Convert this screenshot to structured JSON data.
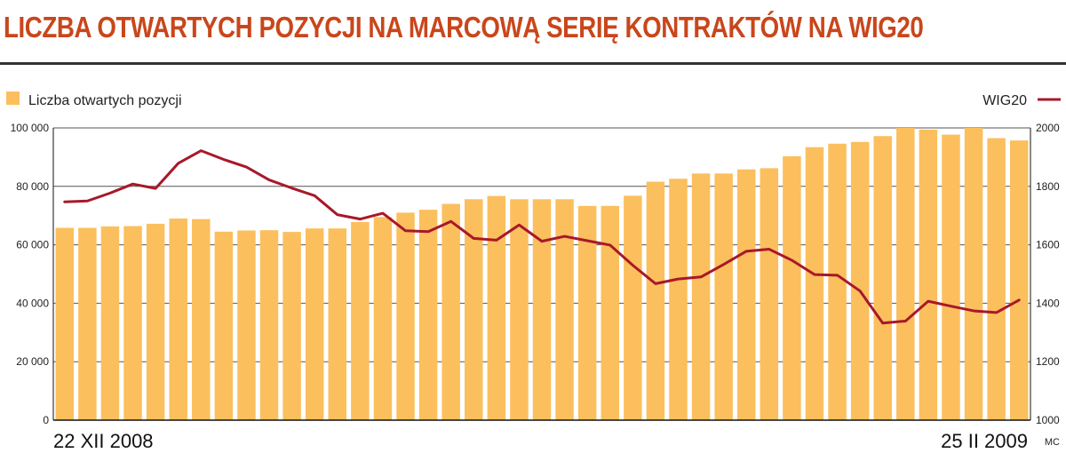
{
  "title": "LICZBA OTWARTYCH POZYCJI NA MARCOWĄ SERIĘ KONTRAKTÓW NA WIG20",
  "credit": "MC",
  "colors": {
    "bars": "#fbbf5d",
    "line": "#a8182a",
    "title": "#c9461b",
    "grid": "#555555"
  },
  "chart_data": {
    "type": "bar",
    "legend": {
      "bars": "Liczba otwartych pozycji",
      "line": "WIG20",
      "placement": "top"
    },
    "x_start_label": "22 XII 2008",
    "x_end_label": "25 II 2009",
    "left_axis": {
      "min": 0,
      "max": 100000,
      "ticks": [
        0,
        20000,
        40000,
        60000,
        80000,
        100000
      ],
      "tick_labels": [
        "0",
        "20 000",
        "40 000",
        "60 000",
        "80 000",
        "100 000"
      ]
    },
    "right_axis": {
      "min": 1000,
      "max": 2000,
      "ticks": [
        1000,
        1200,
        1400,
        1600,
        1800,
        2000
      ],
      "tick_labels": [
        "1000",
        "1200",
        "1400",
        "1600",
        "1800",
        "2000"
      ]
    },
    "grid": true,
    "series": [
      {
        "name": "Liczba otwartych pozycji",
        "type": "bar",
        "axis": "left",
        "values": [
          65800,
          65800,
          66300,
          66400,
          67200,
          69000,
          68800,
          64500,
          64900,
          65000,
          64400,
          65600,
          65600,
          67800,
          69500,
          71000,
          72000,
          74000,
          75600,
          76700,
          75600,
          75600,
          75600,
          73300,
          73300,
          76800,
          81600,
          82600,
          84400,
          84400,
          85800,
          86200,
          90300,
          93400,
          94600,
          95200,
          97200,
          100000,
          99400,
          97700,
          100000,
          96500,
          95700
        ]
      },
      {
        "name": "WIG20",
        "type": "line",
        "axis": "right",
        "values": [
          1747,
          1750,
          1777,
          1808,
          1793,
          1879,
          1922,
          1892,
          1866,
          1822,
          1794,
          1768,
          1703,
          1688,
          1708,
          1648,
          1645,
          1680,
          1622,
          1616,
          1668,
          1612,
          1629,
          1614,
          1599,
          1530,
          1467,
          1483,
          1490,
          1533,
          1578,
          1585,
          1547,
          1498,
          1496,
          1442,
          1332,
          1339,
          1407,
          1390,
          1374,
          1368,
          1411
        ]
      }
    ]
  }
}
